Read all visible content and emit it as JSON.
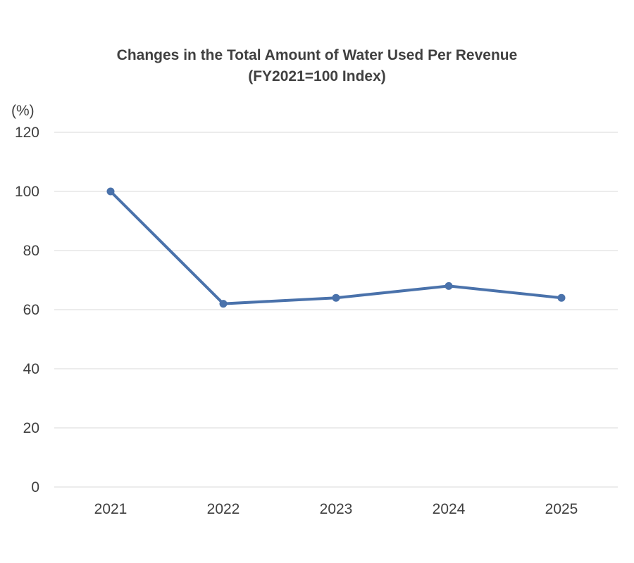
{
  "chart_data": {
    "type": "line",
    "title": "Changes in the Total Amount of Water Used Per Revenue",
    "subtitle": "(FY2021=100 Index)",
    "xlabel": "",
    "ylabel": "(%)",
    "categories": [
      "2021",
      "2022",
      "2023",
      "2024",
      "2025"
    ],
    "series": [
      {
        "values": [
          100,
          62,
          64,
          68,
          64
        ],
        "color": "#4a72ab"
      }
    ],
    "ylim": [
      0,
      120
    ],
    "yticks": [
      0,
      20,
      40,
      60,
      80,
      100,
      120
    ],
    "grid": true,
    "gridColor": "#d9d9d9",
    "textColor": "#404040",
    "legend": "none"
  }
}
